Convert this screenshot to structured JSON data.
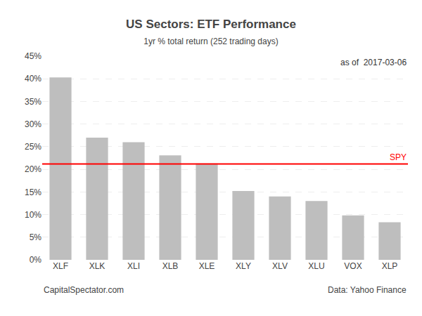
{
  "chart_data": {
    "type": "bar",
    "title": "US Sectors: ETF Performance",
    "subtitle": "1yr % total return (252 trading days)",
    "annotation": "as of  2017-03-06",
    "categories": [
      "XLF",
      "XLK",
      "XLI",
      "XLB",
      "XLE",
      "XLY",
      "XLV",
      "XLU",
      "VOX",
      "XLP"
    ],
    "values": [
      0.403,
      0.27,
      0.26,
      0.231,
      0.213,
      0.152,
      0.14,
      0.13,
      0.098,
      0.083
    ],
    "color": "#BEBEBE",
    "reference_line": 0.212,
    "reference_label": "SPY",
    "reference_color": "#FF0000",
    "ylim": [
      0,
      0.45
    ],
    "yticks": [
      {
        "value": 0.0,
        "label": "0%"
      },
      {
        "value": 0.05,
        "label": "5%"
      },
      {
        "value": 0.1,
        "label": "10%"
      },
      {
        "value": 0.15,
        "label": "15%"
      },
      {
        "value": 0.2,
        "label": "20%"
      },
      {
        "value": 0.25,
        "label": "25%"
      },
      {
        "value": 0.3,
        "label": "30%"
      },
      {
        "value": 0.35,
        "label": "35%"
      },
      {
        "value": 0.4,
        "label": "40%"
      },
      {
        "value": 0.45,
        "label": "45%"
      }
    ],
    "footer_left": "CapitalSpectator.com",
    "footer_right": "Data: Yahoo Finance",
    "grid": true
  }
}
